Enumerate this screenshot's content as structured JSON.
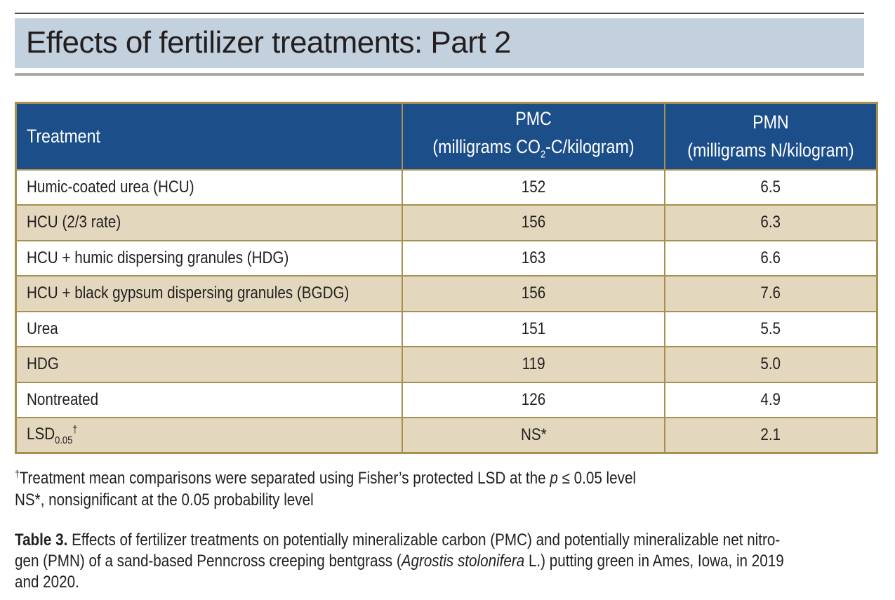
{
  "header": {
    "title": "Effects of fertilizer treatments: Part 2",
    "colors": {
      "title_band": "#c3d1de",
      "table_header": "#1c4f8a",
      "row_shade": "#e3d8bd",
      "border": "#a88f52"
    }
  },
  "table": {
    "columns": [
      {
        "label": "Treatment"
      },
      {
        "label": "PMC",
        "unit_prefix": "(milligrams CO",
        "unit_sub": "2",
        "unit_suffix": "-C/kilogram)"
      },
      {
        "label": "PMN",
        "unit": "(milligrams N/kilogram)"
      }
    ],
    "rows": [
      {
        "treatment": "Humic-coated urea (HCU)",
        "pmc": "152",
        "pmn": "6.5"
      },
      {
        "treatment": "HCU (2/3 rate)",
        "pmc": "156",
        "pmn": "6.3"
      },
      {
        "treatment": "HCU + humic dispersing granules (HDG)",
        "pmc": "163",
        "pmn": "6.6"
      },
      {
        "treatment": "HCU + black gypsum dispersing granules (BGDG)",
        "pmc": "156",
        "pmn": "7.6"
      },
      {
        "treatment": "Urea",
        "pmc": "151",
        "pmn": "5.5"
      },
      {
        "treatment": "HDG",
        "pmc": "119",
        "pmn": "5.0"
      },
      {
        "treatment": "Nontreated",
        "pmc": "126",
        "pmn": "4.9"
      }
    ],
    "lsd_row": {
      "label": "LSD",
      "label_sub": "0.05",
      "label_sup": "†",
      "pmc": "NS*",
      "pmn": "2.1"
    }
  },
  "footnotes": {
    "dagger_mark": "†",
    "dagger_text_before": "Treatment mean comparisons were separated using Fisher’s protected LSD at the ",
    "dagger_italic": "p",
    "dagger_text_after": " ≤ 0.05 level",
    "ns_text": "NS*, nonsignificant at the 0.05 probability level"
  },
  "caption": {
    "label": "Table 3.",
    "line1": " Effects of fertilizer treatments on potentially mineralizable carbon (PMC) and potentially mineralizable net nitro-",
    "line2_before": "gen (PMN) of a sand-based Penncross creeping bentgrass (",
    "line2_italic": "Agrostis stolonifera",
    "line2_after": " L.) putting green in Ames, Iowa, in 2019",
    "line3": "and 2020."
  }
}
